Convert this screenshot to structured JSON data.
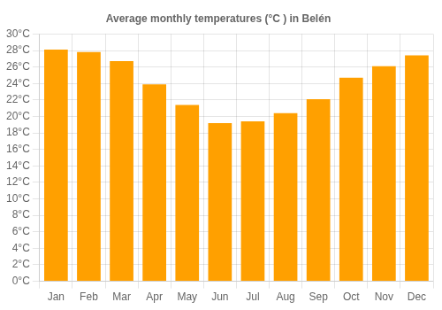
{
  "chart_data": {
    "type": "bar",
    "title": "Average monthly temperatures (°C ) in Belén",
    "categories": [
      "Jan",
      "Feb",
      "Mar",
      "Apr",
      "May",
      "Jun",
      "Jul",
      "Aug",
      "Sep",
      "Oct",
      "Nov",
      "Dec"
    ],
    "values": [
      28.1,
      27.8,
      26.7,
      23.9,
      21.4,
      19.2,
      19.4,
      20.4,
      22.1,
      24.7,
      26.1,
      27.4
    ],
    "color": "#FFA000",
    "ylim": [
      0,
      30
    ],
    "yticks": [
      {
        "value": 0,
        "label": "0°C"
      },
      {
        "value": 2,
        "label": "2°C"
      },
      {
        "value": 4,
        "label": "4°C"
      },
      {
        "value": 6,
        "label": "6°C"
      },
      {
        "value": 8,
        "label": "8°C"
      },
      {
        "value": 10,
        "label": "10°C"
      },
      {
        "value": 12,
        "label": "12°C"
      },
      {
        "value": 14,
        "label": "14°C"
      },
      {
        "value": 16,
        "label": "16°C"
      },
      {
        "value": 18,
        "label": "18°C"
      },
      {
        "value": 20,
        "label": "20°C"
      },
      {
        "value": 22,
        "label": "22°C"
      },
      {
        "value": 24,
        "label": "24°C"
      },
      {
        "value": 26,
        "label": "26°C"
      },
      {
        "value": 28,
        "label": "28°C"
      },
      {
        "value": 30,
        "label": "30°C"
      }
    ],
    "grid": true
  }
}
